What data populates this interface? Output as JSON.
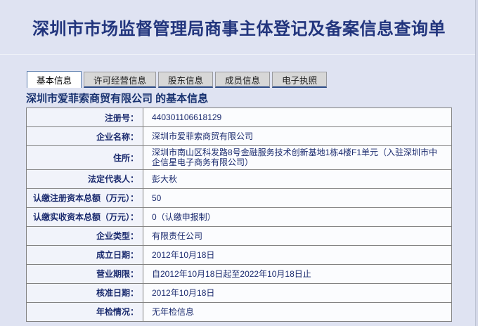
{
  "page": {
    "title": "深圳市市场监督管理局商事主体登记及备案信息查询单"
  },
  "colors": {
    "page_bg": "#dfe3f2",
    "title_text": "#22357d",
    "table_text": "#1a2a6e",
    "tab_inactive_bg": "#d7d7d7",
    "tab_active_bg": "#ffffff",
    "tab_underline": "#2a4a86",
    "label_cell_bg": "#f1f3fa",
    "value_cell_bg": "#fbfcfe"
  },
  "tabs": [
    {
      "label": "基本信息",
      "active": true
    },
    {
      "label": "许可经营信息",
      "active": false
    },
    {
      "label": "股东信息",
      "active": false
    },
    {
      "label": "成员信息",
      "active": false
    },
    {
      "label": "电子执照",
      "active": false
    }
  ],
  "section": {
    "heading": "深圳市爱菲索商贸有限公司 的基本信息"
  },
  "table": {
    "rows": [
      {
        "label": "注册号：",
        "value": "440301106618129"
      },
      {
        "label": "企业名称：",
        "value": "深圳市爱菲索商贸有限公司"
      },
      {
        "label": "住所：",
        "value": "深圳市南山区科发路8号金融服务技术创新基地1栋4楼F1单元（入驻深圳市中企信星电子商务有限公司）"
      },
      {
        "label": "法定代表人：",
        "value": "彭大秋"
      },
      {
        "label": "认缴注册资本总额（万元）：",
        "value": "50"
      },
      {
        "label": "认缴实收资本总额（万元）：",
        "value": "0（认缴申报制）"
      },
      {
        "label": "企业类型：",
        "value": "有限责任公司"
      },
      {
        "label": "成立日期：",
        "value": "2012年10月18日"
      },
      {
        "label": "营业期限：",
        "value": "自2012年10月18日起至2022年10月18日止"
      },
      {
        "label": "核准日期：",
        "value": "2012年10月18日"
      },
      {
        "label": "年检情况：",
        "value": "无年检信息"
      }
    ]
  }
}
